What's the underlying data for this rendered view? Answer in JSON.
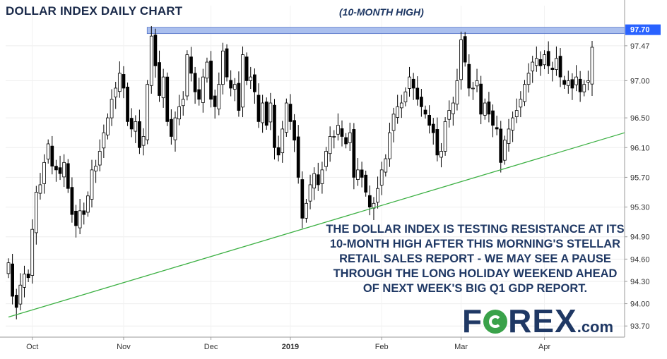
{
  "chart_data": {
    "type": "candlestick",
    "title": "DOLLAR INDEX DAILY CHART",
    "resistance_label": "(10-MONTH HIGH)",
    "resistance_level": 97.7,
    "current_price_label": "97.70",
    "y_ticks": [
      "97.47",
      "97.00",
      "96.50",
      "96.10",
      "95.70",
      "95.30",
      "94.90",
      "94.60",
      "94.30",
      "94.00",
      "93.70"
    ],
    "x_ticks": [
      {
        "label": "Oct",
        "index": 6
      },
      {
        "label": "Nov",
        "index": 29
      },
      {
        "label": "Dec",
        "index": 51
      },
      {
        "label": "2019",
        "index": 71
      },
      {
        "label": "Feb",
        "index": 94
      },
      {
        "label": "Mar",
        "index": 114
      },
      {
        "label": "Apr",
        "index": 135
      }
    ],
    "ylim": [
      93.55,
      97.82
    ],
    "trendline": {
      "start": {
        "index": 0,
        "value": 93.82
      },
      "end": {
        "index": 154,
        "value": 96.3
      }
    },
    "annotation": "THE DOLLAR INDEX IS TESTING RESISTANCE AT ITS\n10-MONTH HIGH AFTER THIS MORNING'S STELLAR\nRETAIL SALES REPORT - WE MAY SEE A PAUSE\nTHROUGH THE LONG HOLIDAY WEEKEND AHEAD\nOF NEXT WEEK'S BIG Q1 GDP REPORT.",
    "colors": {
      "bull": "#ffffff",
      "bear": "#000000",
      "trend": "#3cb043",
      "resistance": "#8ea9e8",
      "text": "#1f3864"
    },
    "close_series": [
      94.55,
      94.1,
      93.95,
      94.25,
      94.4,
      94.35,
      95.0,
      95.5,
      95.6,
      95.9,
      96.15,
      95.85,
      95.8,
      95.75,
      95.9,
      95.55,
      95.2,
      95.05,
      95.25,
      95.2,
      95.45,
      95.8,
      95.85,
      96.05,
      96.3,
      96.5,
      96.75,
      96.9,
      97.1,
      96.9,
      96.45,
      96.35,
      96.45,
      96.1,
      96.25,
      96.95,
      97.6,
      97.2,
      96.8,
      97.05,
      96.45,
      96.25,
      96.5,
      96.65,
      96.75,
      97.35,
      97.1,
      96.85,
      96.75,
      97.05,
      97.25,
      96.75,
      96.65,
      96.95,
      97.4,
      97.05,
      96.9,
      96.95,
      96.6,
      97.35,
      97.0,
      97.05,
      96.85,
      96.45,
      96.7,
      96.4,
      96.7,
      96.1,
      96.0,
      96.35,
      96.7,
      96.45,
      96.2,
      95.7,
      95.15,
      95.35,
      95.6,
      95.75,
      95.6,
      95.8,
      96.05,
      96.25,
      96.25,
      96.4,
      96.25,
      96.15,
      96.3,
      95.7,
      95.8,
      95.7,
      95.5,
      95.3,
      95.35,
      95.55,
      95.8,
      95.95,
      96.3,
      96.55,
      96.65,
      96.7,
      96.85,
      97.05,
      96.9,
      96.75,
      96.65,
      96.55,
      96.4,
      96.3,
      96.0,
      96.05,
      96.45,
      96.6,
      96.7,
      97.0,
      97.55,
      97.25,
      96.9,
      96.9,
      97.0,
      96.55,
      96.7,
      96.55,
      96.4,
      96.35,
      95.9,
      96.2,
      96.35,
      96.5,
      96.6,
      96.75,
      96.95,
      97.1,
      97.25,
      97.3,
      97.2,
      97.35,
      97.2,
      97.15,
      97.3,
      97.05,
      96.95,
      97.0,
      96.9,
      97.05,
      96.85,
      96.95,
      97.0,
      97.45
    ]
  }
}
